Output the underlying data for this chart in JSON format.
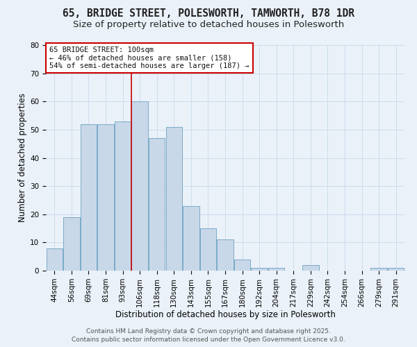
{
  "title": "65, BRIDGE STREET, POLESWORTH, TAMWORTH, B78 1DR",
  "subtitle": "Size of property relative to detached houses in Polesworth",
  "xlabel": "Distribution of detached houses by size in Polesworth",
  "ylabel": "Number of detached properties",
  "categories": [
    "44sqm",
    "56sqm",
    "69sqm",
    "81sqm",
    "93sqm",
    "106sqm",
    "118sqm",
    "130sqm",
    "143sqm",
    "155sqm",
    "167sqm",
    "180sqm",
    "192sqm",
    "204sqm",
    "217sqm",
    "229sqm",
    "242sqm",
    "254sqm",
    "266sqm",
    "279sqm",
    "291sqm"
  ],
  "values": [
    8,
    19,
    52,
    52,
    53,
    60,
    47,
    51,
    23,
    15,
    11,
    4,
    1,
    1,
    0,
    2,
    0,
    0,
    0,
    1,
    1
  ],
  "bar_color": "#c8d8e8",
  "bar_edge_color": "#7aaac8",
  "bar_edge_width": 0.7,
  "grid_color": "#c8d8ec",
  "background_color": "#eaf1f8",
  "red_line_index": 5,
  "annotation_text": "65 BRIDGE STREET: 100sqm\n← 46% of detached houses are smaller (158)\n54% of semi-detached houses are larger (187) →",
  "annotation_box_facecolor": "#ffffff",
  "annotation_box_edgecolor": "#cc0000",
  "ylim": [
    0,
    80
  ],
  "yticks": [
    0,
    10,
    20,
    30,
    40,
    50,
    60,
    70,
    80
  ],
  "footnote1": "Contains HM Land Registry data © Crown copyright and database right 2025.",
  "footnote2": "Contains public sector information licensed under the Open Government Licence v3.0.",
  "title_fontsize": 10.5,
  "subtitle_fontsize": 9.5,
  "axis_label_fontsize": 8.5,
  "tick_fontsize": 7.5,
  "annotation_fontsize": 7.5,
  "footnote_fontsize": 6.5
}
